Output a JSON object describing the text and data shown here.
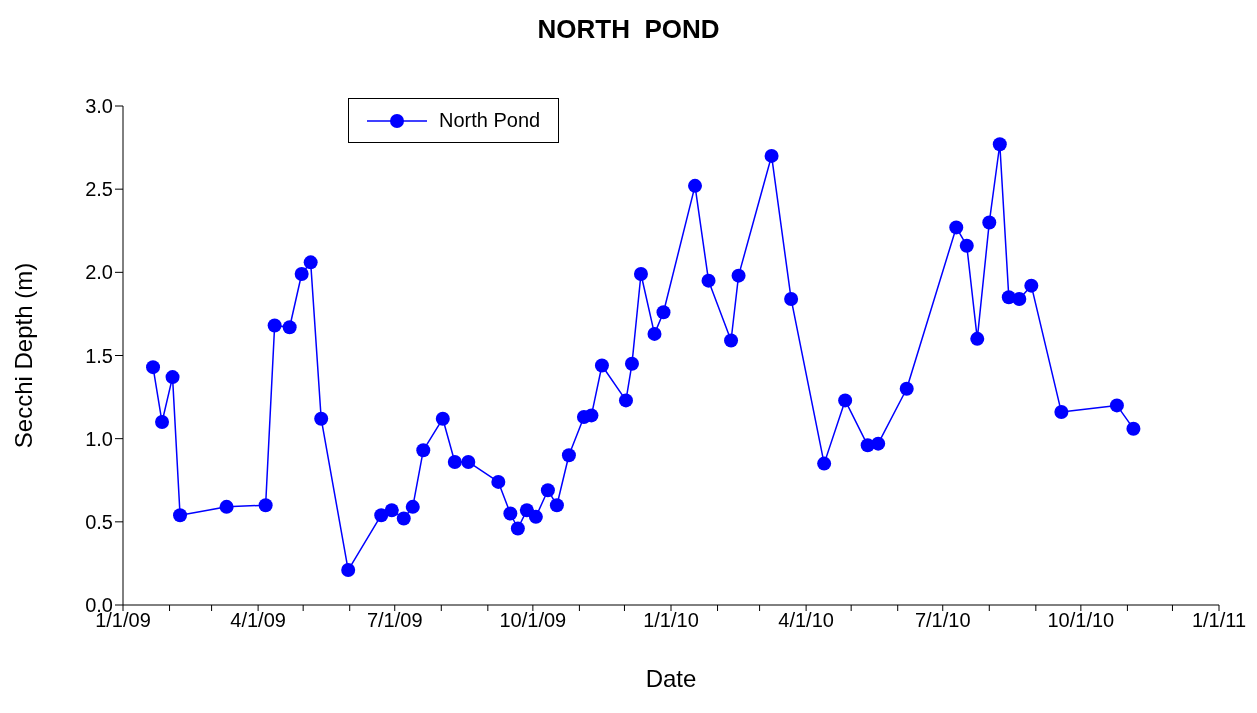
{
  "chart_data": {
    "type": "line",
    "title": "NORTH  POND",
    "xlabel": "Date",
    "ylabel": "Secchi Depth (m)",
    "x": [
      "2009-01-21",
      "2009-01-27",
      "2009-02-03",
      "2009-02-08",
      "2009-03-11",
      "2009-04-06",
      "2009-04-12",
      "2009-04-22",
      "2009-04-30",
      "2009-05-06",
      "2009-05-13",
      "2009-05-31",
      "2009-06-22",
      "2009-06-29",
      "2009-07-07",
      "2009-07-13",
      "2009-07-20",
      "2009-08-02",
      "2009-08-10",
      "2009-08-19",
      "2009-09-08",
      "2009-09-16",
      "2009-09-21",
      "2009-09-27",
      "2009-10-03",
      "2009-10-11",
      "2009-10-17",
      "2009-10-25",
      "2009-11-04",
      "2009-11-09",
      "2009-11-16",
      "2009-12-02",
      "2009-12-06",
      "2009-12-12",
      "2009-12-21",
      "2009-12-27",
      "2010-01-17",
      "2010-01-26",
      "2010-02-10",
      "2010-02-15",
      "2010-03-09",
      "2010-03-22",
      "2010-04-13",
      "2010-04-27",
      "2010-05-12",
      "2010-05-19",
      "2010-06-07",
      "2010-07-10",
      "2010-07-17",
      "2010-07-24",
      "2010-08-01",
      "2010-08-08",
      "2010-08-14",
      "2010-08-21",
      "2010-08-29",
      "2010-09-18",
      "2010-10-25",
      "2010-11-05"
    ],
    "series": [
      {
        "name": "North Pond",
        "color": "#0000ff",
        "values": [
          1.43,
          1.1,
          1.37,
          0.54,
          0.59,
          0.6,
          1.68,
          1.67,
          1.99,
          2.06,
          1.12,
          0.21,
          0.54,
          0.57,
          0.52,
          0.59,
          0.93,
          1.12,
          0.86,
          0.86,
          0.74,
          0.55,
          0.46,
          0.57,
          0.53,
          0.69,
          0.6,
          0.9,
          1.13,
          1.14,
          1.44,
          1.23,
          1.45,
          1.99,
          1.63,
          1.76,
          2.52,
          1.95,
          1.59,
          1.98,
          2.7,
          1.84,
          0.85,
          1.23,
          0.96,
          0.97,
          1.3,
          2.27,
          2.16,
          1.6,
          2.3,
          2.77,
          1.85,
          1.84,
          1.92,
          1.16,
          1.2,
          1.06
        ]
      }
    ],
    "xlim": [
      "2009-01-01",
      "2011-01-01"
    ],
    "xticks": [
      {
        "value": "2009-01-01",
        "label": "1/1/09"
      },
      {
        "value": "2009-02-01",
        "label": null
      },
      {
        "value": "2009-03-01",
        "label": null
      },
      {
        "value": "2009-04-01",
        "label": "4/1/09"
      },
      {
        "value": "2009-05-01",
        "label": null
      },
      {
        "value": "2009-06-01",
        "label": null
      },
      {
        "value": "2009-07-01",
        "label": "7/1/09"
      },
      {
        "value": "2009-08-01",
        "label": null
      },
      {
        "value": "2009-09-01",
        "label": null
      },
      {
        "value": "2009-10-01",
        "label": "10/1/09"
      },
      {
        "value": "2009-11-01",
        "label": null
      },
      {
        "value": "2009-12-01",
        "label": null
      },
      {
        "value": "2010-01-01",
        "label": "1/1/10"
      },
      {
        "value": "2010-02-01",
        "label": null
      },
      {
        "value": "2010-03-01",
        "label": null
      },
      {
        "value": "2010-04-01",
        "label": "4/1/10"
      },
      {
        "value": "2010-05-01",
        "label": null
      },
      {
        "value": "2010-06-01",
        "label": null
      },
      {
        "value": "2010-07-01",
        "label": "7/1/10"
      },
      {
        "value": "2010-08-01",
        "label": null
      },
      {
        "value": "2010-09-01",
        "label": null
      },
      {
        "value": "2010-10-01",
        "label": "10/1/10"
      },
      {
        "value": "2010-11-01",
        "label": null
      },
      {
        "value": "2010-12-01",
        "label": null
      },
      {
        "value": "2011-01-01",
        "label": "1/1/11"
      }
    ],
    "ylim": [
      0,
      3
    ],
    "yticks": [
      {
        "value": 0,
        "label": "0.0"
      },
      {
        "value": 0.5,
        "label": "0.5"
      },
      {
        "value": 1,
        "label": "1.0"
      },
      {
        "value": 1.5,
        "label": "1.5"
      },
      {
        "value": 2,
        "label": "2.0"
      },
      {
        "value": 2.5,
        "label": "2.5"
      },
      {
        "value": 3,
        "label": "3.0"
      }
    ],
    "legend": "top left",
    "marker": "circle",
    "line_style": "solid",
    "grid": false
  }
}
